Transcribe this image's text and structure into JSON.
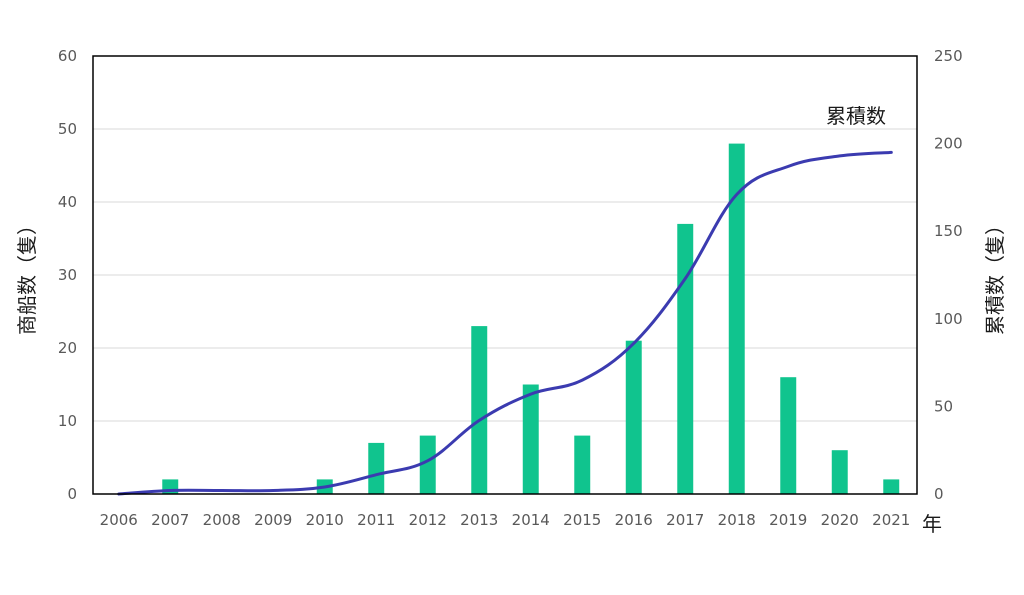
{
  "chart_data": {
    "type": "bar",
    "categories": [
      "2006",
      "2007",
      "2008",
      "2009",
      "2010",
      "2011",
      "2012",
      "2013",
      "2014",
      "2015",
      "2016",
      "2017",
      "2018",
      "2019",
      "2020",
      "2021"
    ],
    "series": [
      {
        "type": "bar",
        "axis": "left",
        "values": [
          0,
          2,
          0,
          0,
          2,
          7,
          8,
          23,
          15,
          8,
          21,
          37,
          48,
          16,
          6,
          2
        ]
      },
      {
        "type": "line",
        "axis": "right",
        "name": "累積数",
        "values": [
          0,
          2,
          2,
          2,
          4,
          11,
          19,
          42,
          57,
          65,
          86,
          123,
          171,
          187,
          193,
          195
        ]
      }
    ],
    "ylabel": "商船数（隻）",
    "y2label": "累積数（隻）",
    "xunit": "年",
    "ylim": [
      0,
      60
    ],
    "y2lim": [
      0,
      250
    ],
    "yticks": [
      "0",
      "10",
      "20",
      "30",
      "40",
      "50",
      "60"
    ],
    "y2ticks": [
      "0",
      "50",
      "100",
      "150",
      "200",
      "250"
    ],
    "grid": true,
    "colors": {
      "bar": "#10c48e",
      "line": "#3b3bb0",
      "grid": "#d9d9d9",
      "frame": "#000000"
    }
  }
}
